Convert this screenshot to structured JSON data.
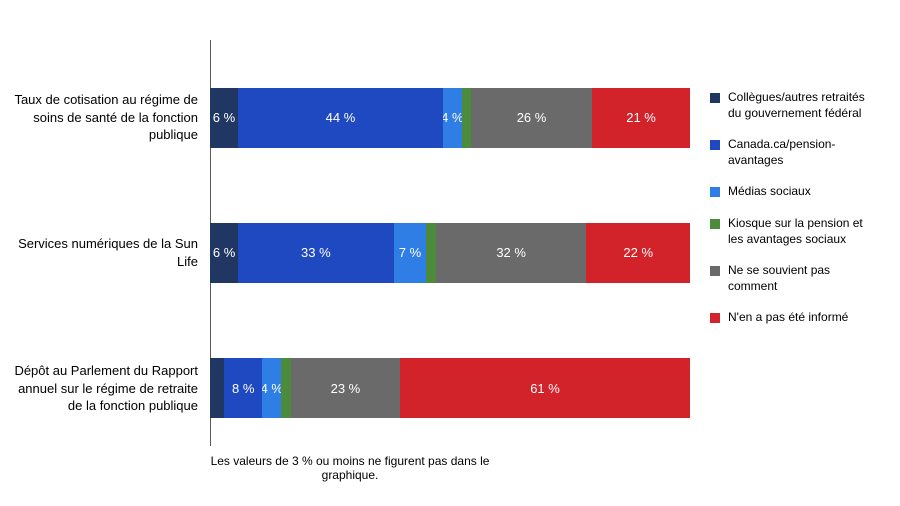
{
  "chart": {
    "type": "stacked-horizontal-bar",
    "background_color": "#ffffff",
    "axis_line_color": "#595959",
    "label_fontsize": 13,
    "label_color": "#000000",
    "value_fontsize": 13,
    "value_color": "#ffffff",
    "legend_fontsize": 12,
    "footnote_fontsize": 12,
    "footnote": "Les valeurs de 3 % ou moins ne figurent pas dans le graphique.",
    "series": [
      {
        "key": "colleagues",
        "label": "Collègues/autres retraités du gouvernement fédéral",
        "color": "#203764"
      },
      {
        "key": "canada_ca",
        "label": "Canada.ca/pension-avantages",
        "color": "#1f49c1"
      },
      {
        "key": "social",
        "label": "Médias sociaux",
        "color": "#2f7ee6"
      },
      {
        "key": "kiosk",
        "label": "Kiosque sur la pension et les avantages sociaux",
        "color": "#4d8b3c"
      },
      {
        "key": "dontrecall",
        "label": "Ne se souvient pas comment",
        "color": "#6a6a6a"
      },
      {
        "key": "notinformed",
        "label": "N'en a pas été informé",
        "color": "#d2232a"
      }
    ],
    "rows": [
      {
        "label": "Taux de cotisation au régime de soins de santé de la fonction publique",
        "segments": [
          {
            "series": "colleagues",
            "value": 6,
            "text": "6 %",
            "show": true
          },
          {
            "series": "canada_ca",
            "value": 44,
            "text": "44 %",
            "show": true
          },
          {
            "series": "social",
            "value": 4,
            "text": "4 %",
            "show": true
          },
          {
            "series": "kiosk",
            "value": 2,
            "text": "",
            "show": false
          },
          {
            "series": "dontrecall",
            "value": 26,
            "text": "26 %",
            "show": true
          },
          {
            "series": "notinformed",
            "value": 21,
            "text": "21 %",
            "show": true
          }
        ]
      },
      {
        "label": "Services numériques de la Sun Life",
        "segments": [
          {
            "series": "colleagues",
            "value": 6,
            "text": "6 %",
            "show": true
          },
          {
            "series": "canada_ca",
            "value": 33,
            "text": "33 %",
            "show": true
          },
          {
            "series": "social",
            "value": 7,
            "text": "7 %",
            "show": true
          },
          {
            "series": "kiosk",
            "value": 2,
            "text": "",
            "show": false
          },
          {
            "series": "dontrecall",
            "value": 32,
            "text": "32 %",
            "show": true
          },
          {
            "series": "notinformed",
            "value": 22,
            "text": "22 %",
            "show": true
          }
        ]
      },
      {
        "label": "Dépôt au Parlement du Rapport annuel sur le régime de retraite de la fonction publique",
        "segments": [
          {
            "series": "colleagues",
            "value": 3,
            "text": "",
            "show": false
          },
          {
            "series": "canada_ca",
            "value": 8,
            "text": "8 %",
            "show": true
          },
          {
            "series": "social",
            "value": 4,
            "text": "4 %",
            "show": true
          },
          {
            "series": "kiosk",
            "value": 2,
            "text": "",
            "show": false
          },
          {
            "series": "dontrecall",
            "value": 23,
            "text": "23 %",
            "show": true
          },
          {
            "series": "notinformed",
            "value": 61,
            "text": "61 %",
            "show": true
          }
        ]
      }
    ]
  }
}
